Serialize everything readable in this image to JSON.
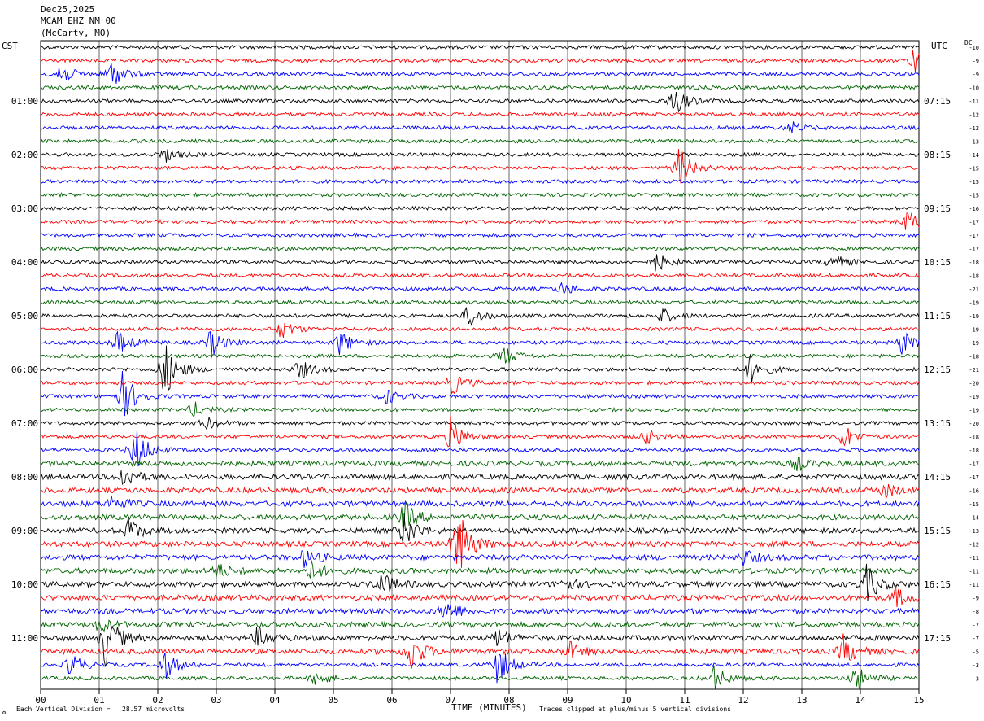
{
  "header": {
    "date": "Dec25,2025",
    "station": "MCAM EHZ NM 00",
    "location": "(McCarty, MO)"
  },
  "left_tz": "CST",
  "right_tz": "UTC",
  "dc_label": "DC",
  "footer": {
    "scale_text": "Each Vertical Division =   28.57 microvolts",
    "clip_text": "Traces clipped at plus/minus 5 vertical divisions",
    "logo_text": "⚙"
  },
  "chart_data": {
    "type": "line",
    "title": "",
    "xlabel": "TIME (MINUTES)",
    "ylabel": "",
    "xlim": [
      0,
      15
    ],
    "x_ticks": [
      "00",
      "01",
      "02",
      "03",
      "04",
      "05",
      "06",
      "07",
      "08",
      "09",
      "10",
      "11",
      "12",
      "13",
      "14",
      "15"
    ],
    "trace_colors": [
      "#000000",
      "#ff0000",
      "#0000ff",
      "#006400"
    ],
    "left_labels": [
      "",
      "",
      "",
      "",
      "01:00",
      "",
      "",
      "",
      "02:00",
      "",
      "",
      "",
      "03:00",
      "",
      "",
      "",
      "04:00",
      "",
      "",
      "",
      "05:00",
      "",
      "",
      "",
      "06:00",
      "",
      "",
      "",
      "07:00",
      "",
      "",
      "",
      "08:00",
      "",
      "",
      "",
      "09:00",
      "",
      "",
      "",
      "10:00",
      "",
      "",
      "",
      "11:00",
      "",
      "",
      ""
    ],
    "right_labels": [
      "",
      "",
      "",
      "",
      "07:15",
      "",
      "",
      "",
      "08:15",
      "",
      "",
      "",
      "09:15",
      "",
      "",
      "",
      "10:15",
      "",
      "",
      "",
      "11:15",
      "",
      "",
      "",
      "12:15",
      "",
      "",
      "",
      "13:15",
      "",
      "",
      "",
      "14:15",
      "",
      "",
      "",
      "15:15",
      "",
      "",
      "",
      "16:15",
      "",
      "",
      "",
      "17:15",
      "",
      "",
      ""
    ],
    "dc_offsets": [
      "-10",
      "-9",
      "-9",
      "-10",
      "-11",
      "-12",
      "-12",
      "-13",
      "-14",
      "-15",
      "-15",
      "-15",
      "-16",
      "-17",
      "-17",
      "-17",
      "-18",
      "-18",
      "-21",
      "-19",
      "-19",
      "-19",
      "-19",
      "-18",
      "-21",
      "-20",
      "-19",
      "-19",
      "-20",
      "-18",
      "-18",
      "-17",
      "-17",
      "-16",
      "-15",
      "-14",
      "-13",
      "-12",
      "-11",
      "-11",
      "-11",
      "-9",
      "-8",
      "-7",
      "-7",
      "-5",
      "-3",
      "-3"
    ],
    "events": [
      {
        "trace": 1,
        "minute": 14.9,
        "amp": 1.5
      },
      {
        "trace": 2,
        "minute": 0.3,
        "amp": 1.6
      },
      {
        "trace": 2,
        "minute": 1.2,
        "amp": 1.8
      },
      {
        "trace": 4,
        "minute": 10.8,
        "amp": 2.0
      },
      {
        "trace": 6,
        "minute": 12.8,
        "amp": 0.8
      },
      {
        "trace": 8,
        "minute": 2.1,
        "amp": 1.0
      },
      {
        "trace": 9,
        "minute": 10.9,
        "amp": 2.6
      },
      {
        "trace": 13,
        "minute": 14.8,
        "amp": 1.6
      },
      {
        "trace": 16,
        "minute": 10.5,
        "amp": 1.3
      },
      {
        "trace": 16,
        "minute": 13.5,
        "amp": 1.2
      },
      {
        "trace": 18,
        "minute": 8.9,
        "amp": 0.8
      },
      {
        "trace": 20,
        "minute": 7.3,
        "amp": 1.5
      },
      {
        "trace": 20,
        "minute": 10.6,
        "amp": 1.0
      },
      {
        "trace": 21,
        "minute": 4.1,
        "amp": 1.2
      },
      {
        "trace": 22,
        "minute": 1.3,
        "amp": 1.6
      },
      {
        "trace": 22,
        "minute": 2.9,
        "amp": 1.8
      },
      {
        "trace": 22,
        "minute": 5.1,
        "amp": 1.6
      },
      {
        "trace": 22,
        "minute": 14.7,
        "amp": 1.5
      },
      {
        "trace": 23,
        "minute": 7.9,
        "amp": 1.3
      },
      {
        "trace": 24,
        "minute": 2.1,
        "amp": 4.0
      },
      {
        "trace": 24,
        "minute": 4.4,
        "amp": 1.4
      },
      {
        "trace": 24,
        "minute": 12.1,
        "amp": 2.0
      },
      {
        "trace": 25,
        "minute": 7.0,
        "amp": 1.6
      },
      {
        "trace": 26,
        "minute": 1.4,
        "amp": 3.2
      },
      {
        "trace": 26,
        "minute": 5.9,
        "amp": 1.0
      },
      {
        "trace": 27,
        "minute": 2.6,
        "amp": 1.0
      },
      {
        "trace": 28,
        "minute": 2.8,
        "amp": 0.9
      },
      {
        "trace": 29,
        "minute": 7.0,
        "amp": 2.4
      },
      {
        "trace": 29,
        "minute": 10.3,
        "amp": 1.0
      },
      {
        "trace": 29,
        "minute": 13.7,
        "amp": 1.6
      },
      {
        "trace": 30,
        "minute": 1.6,
        "amp": 3.2
      },
      {
        "trace": 31,
        "minute": 12.9,
        "amp": 0.8
      },
      {
        "trace": 32,
        "minute": 1.4,
        "amp": 1.4
      },
      {
        "trace": 33,
        "minute": 14.4,
        "amp": 1.0
      },
      {
        "trace": 34,
        "minute": 1.2,
        "amp": 1.0
      },
      {
        "trace": 35,
        "minute": 6.2,
        "amp": 2.0
      },
      {
        "trace": 36,
        "minute": 1.5,
        "amp": 1.6
      },
      {
        "trace": 36,
        "minute": 6.2,
        "amp": 2.2
      },
      {
        "trace": 37,
        "minute": 7.1,
        "amp": 5.0
      },
      {
        "trace": 38,
        "minute": 4.5,
        "amp": 1.2
      },
      {
        "trace": 38,
        "minute": 12.0,
        "amp": 1.0
      },
      {
        "trace": 39,
        "minute": 3.0,
        "amp": 1.0
      },
      {
        "trace": 39,
        "minute": 4.6,
        "amp": 1.3
      },
      {
        "trace": 40,
        "minute": 5.8,
        "amp": 1.6
      },
      {
        "trace": 40,
        "minute": 14.1,
        "amp": 2.4
      },
      {
        "trace": 40,
        "minute": 8.9,
        "amp": 1.0
      },
      {
        "trace": 41,
        "minute": 14.6,
        "amp": 1.3
      },
      {
        "trace": 42,
        "minute": 6.9,
        "amp": 1.6
      },
      {
        "trace": 43,
        "minute": 1.0,
        "amp": 1.0
      },
      {
        "trace": 44,
        "minute": 1.1,
        "amp": 3.6
      },
      {
        "trace": 44,
        "minute": 3.7,
        "amp": 1.3
      },
      {
        "trace": 44,
        "minute": 7.8,
        "amp": 1.2
      },
      {
        "trace": 45,
        "minute": 6.3,
        "amp": 2.6
      },
      {
        "trace": 45,
        "minute": 9.0,
        "amp": 1.3
      },
      {
        "trace": 45,
        "minute": 13.7,
        "amp": 2.0
      },
      {
        "trace": 46,
        "minute": 0.5,
        "amp": 1.6
      },
      {
        "trace": 46,
        "minute": 2.1,
        "amp": 2.0
      },
      {
        "trace": 46,
        "minute": 7.8,
        "amp": 2.6
      },
      {
        "trace": 47,
        "minute": 4.7,
        "amp": 1.0
      },
      {
        "trace": 47,
        "minute": 11.5,
        "amp": 1.6
      },
      {
        "trace": 47,
        "minute": 13.9,
        "amp": 1.8
      }
    ]
  }
}
